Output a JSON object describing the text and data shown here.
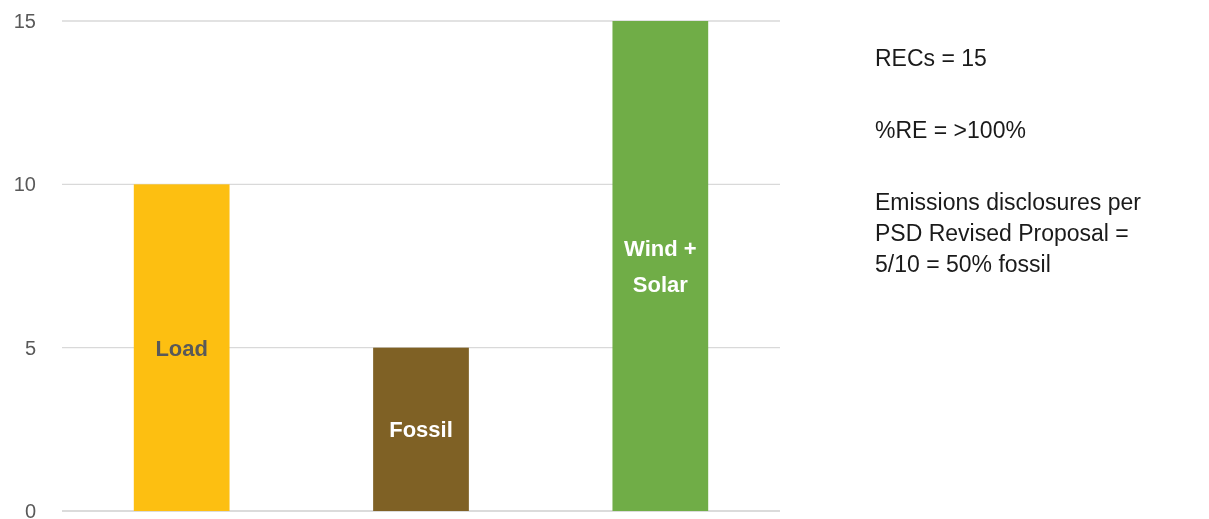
{
  "chart_data": {
    "type": "bar",
    "categories": [
      "Load",
      "Fossil",
      "Wind + Solar"
    ],
    "values": [
      10,
      5,
      15
    ],
    "colors": [
      "#fdbf11",
      "#7f6125",
      "#70ad47"
    ],
    "ylim": [
      0,
      15
    ],
    "yticks": [
      0,
      5,
      10,
      15
    ],
    "grid": "y",
    "annotations": [
      "RECs = 15",
      "%RE = >100%",
      "Emissions disclosures per PSD Revised Proposal = 5/10 = 50% fossil"
    ]
  }
}
